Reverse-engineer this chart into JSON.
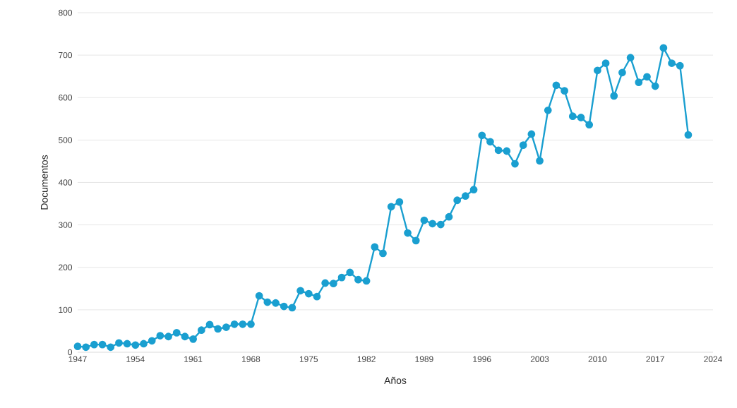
{
  "chart_data": {
    "type": "line",
    "xlabel": "Años",
    "ylabel": "Documentos",
    "x": [
      1947,
      1948,
      1949,
      1950,
      1951,
      1952,
      1953,
      1954,
      1955,
      1956,
      1957,
      1958,
      1959,
      1960,
      1961,
      1962,
      1963,
      1964,
      1965,
      1966,
      1967,
      1968,
      1969,
      1970,
      1971,
      1972,
      1973,
      1974,
      1975,
      1976,
      1977,
      1978,
      1979,
      1980,
      1981,
      1982,
      1983,
      1984,
      1985,
      1986,
      1987,
      1988,
      1989,
      1990,
      1991,
      1992,
      1993,
      1994,
      1995,
      1996,
      1997,
      1998,
      1999,
      2000,
      2001,
      2002,
      2003,
      2004,
      2005,
      2006,
      2007,
      2008,
      2009,
      2010,
      2011,
      2012,
      2013,
      2014,
      2015,
      2016,
      2017,
      2018,
      2019,
      2020,
      2021
    ],
    "series": [
      {
        "color": "#1a9fd0",
        "values": [
          14,
          12,
          18,
          18,
          12,
          22,
          20,
          17,
          20,
          27,
          39,
          37,
          46,
          37,
          31,
          52,
          65,
          55,
          59,
          66,
          66,
          66,
          133,
          118,
          116,
          108,
          105,
          145,
          138,
          131,
          163,
          162,
          176,
          188,
          171,
          168,
          248,
          233,
          343,
          354,
          281,
          263,
          311,
          303,
          301,
          319,
          358,
          368,
          383,
          511,
          496,
          476,
          474,
          444,
          488,
          514,
          451,
          570,
          629,
          616,
          556,
          553,
          536,
          664,
          681,
          604,
          659,
          694,
          636,
          649,
          627,
          717,
          681,
          675,
          512
        ]
      }
    ],
    "xlim": [
      1947,
      2024
    ],
    "xticks": [
      1947,
      1954,
      1961,
      1968,
      1975,
      1982,
      1989,
      1996,
      2003,
      2010,
      2017,
      2024
    ],
    "ylim": [
      0,
      800
    ],
    "yticks": [
      0,
      100,
      200,
      300,
      400,
      500,
      600,
      700,
      800
    ],
    "grid": "y",
    "marker": "circle",
    "line_style": "solid"
  }
}
